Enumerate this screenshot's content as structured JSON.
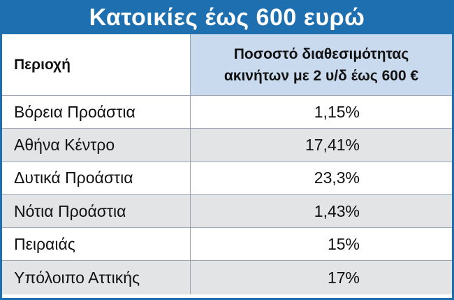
{
  "title": "Κατοικίες έως 600 ευρώ",
  "colors": {
    "title_bg": "#1d6fb0",
    "header_highlight": "#c9daee",
    "alt_row": "#e3e4e6"
  },
  "table": {
    "headers": [
      "Περιοχή",
      "Ποσοστό διαθεσιμότητας\nακινήτων με 2 υ/δ έως 600 €"
    ],
    "rows": [
      {
        "area": "Βόρεια Προάστια",
        "value": "1,15%"
      },
      {
        "area": "Αθήνα Κέντρο",
        "value": "17,41%"
      },
      {
        "area": "Δυτικά Προάστια",
        "value": "23,3%"
      },
      {
        "area": "Νότια Προάστια",
        "value": "1,43%"
      },
      {
        "area": "Πειραιάς",
        "value": "15%"
      },
      {
        "area": "Υπόλοιπο Αττικής",
        "value": "17%"
      }
    ]
  }
}
